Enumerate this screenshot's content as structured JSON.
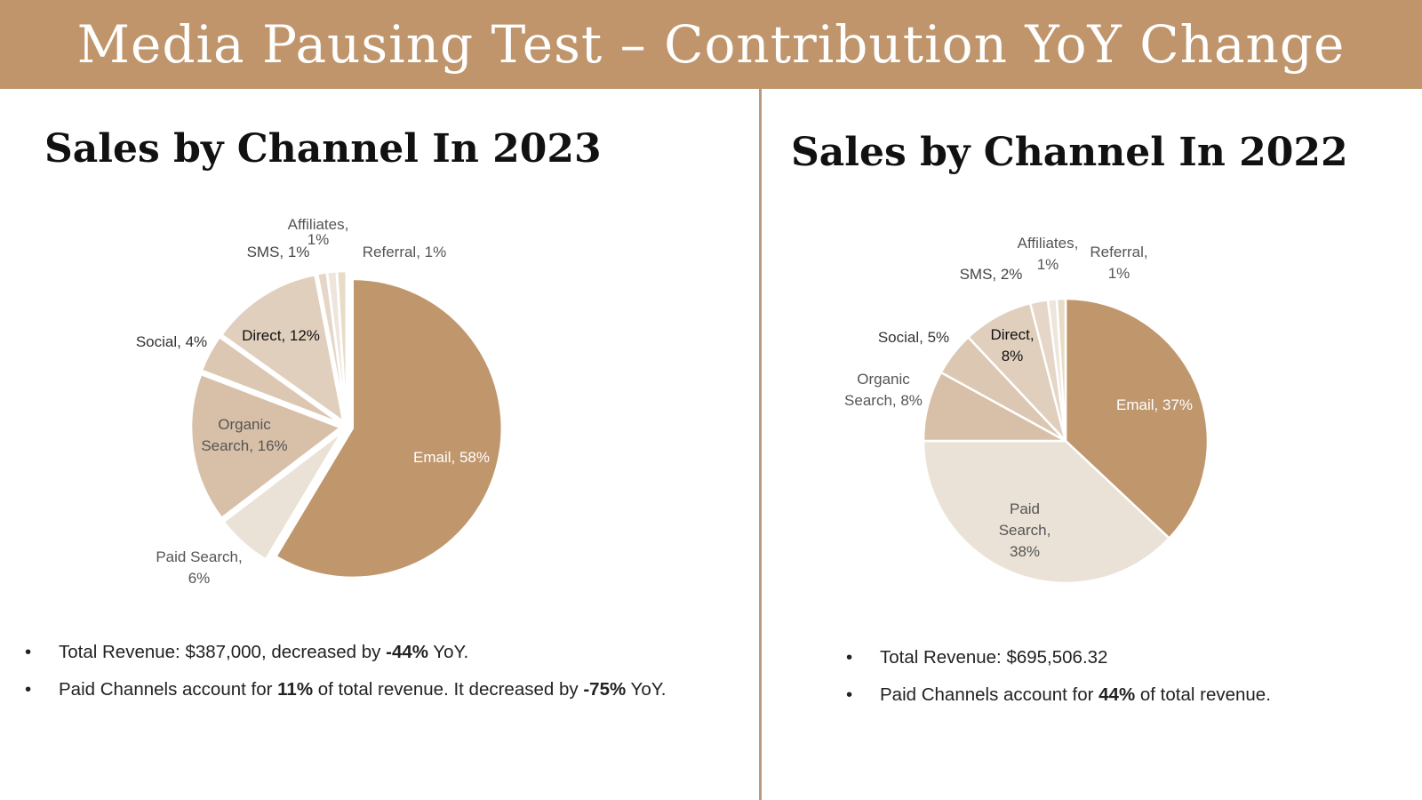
{
  "header": {
    "title": "Media Pausing Test – Contribution YoY Change"
  },
  "colors": {
    "header_bg": "#c0956b",
    "email": "#c0976d",
    "paid_search": "#ebe2d7",
    "organic_search": "#d8c0a8",
    "social": "#dcc7b2",
    "direct": "#e1cfbd",
    "sms": "#e5d6c7",
    "affiliates": "#eee5dc",
    "referral": "#e8dcc6"
  },
  "chart_data": [
    {
      "type": "pie",
      "title": "Sales by Channel In 2023",
      "slices": [
        {
          "name": "Email",
          "value": 58,
          "label": "Email, 58%",
          "color_key": "email"
        },
        {
          "name": "Paid Search",
          "value": 6,
          "label": "Paid Search, 6%",
          "color_key": "paid_search"
        },
        {
          "name": "Organic Search",
          "value": 16,
          "label": "Organic Search, 16%",
          "color_key": "organic_search"
        },
        {
          "name": "Social",
          "value": 4,
          "label": "Social, 4%",
          "color_key": "social"
        },
        {
          "name": "Direct",
          "value": 12,
          "label": "Direct, 12%",
          "color_key": "direct"
        },
        {
          "name": "SMS",
          "value": 1,
          "label": "SMS, 1%",
          "color_key": "sms"
        },
        {
          "name": "Affiliates",
          "value": 1,
          "label": "Affiliates, 1%",
          "color_key": "affiliates"
        },
        {
          "name": "Referral",
          "value": 1,
          "label": "Referral, 1%",
          "color_key": "referral"
        }
      ],
      "notes": [
        {
          "parts": [
            {
              "text": "Total Revenue: $387,000, decreased by ",
              "bold": false
            },
            {
              "text": "-44%",
              "bold": true
            },
            {
              "text": " YoY.",
              "bold": false
            }
          ]
        },
        {
          "parts": [
            {
              "text": "Paid Channels account for ",
              "bold": false
            },
            {
              "text": "11%",
              "bold": true
            },
            {
              "text": " of total revenue. It decreased by ",
              "bold": false
            },
            {
              "text": "-75%",
              "bold": true
            },
            {
              "text": " YoY.",
              "bold": false
            }
          ]
        }
      ]
    },
    {
      "type": "pie",
      "title": "Sales by Channel In 2022",
      "slices": [
        {
          "name": "Email",
          "value": 37,
          "label": "Email, 37%",
          "color_key": "email"
        },
        {
          "name": "Paid Search",
          "value": 38,
          "label": "Paid Search, 38%",
          "color_key": "paid_search"
        },
        {
          "name": "Organic Search",
          "value": 8,
          "label": "Organic Search, 8%",
          "color_key": "organic_search"
        },
        {
          "name": "Social",
          "value": 5,
          "label": "Social, 5%",
          "color_key": "social"
        },
        {
          "name": "Direct",
          "value": 8,
          "label": "Direct, 8%",
          "color_key": "direct"
        },
        {
          "name": "SMS",
          "value": 2,
          "label": "SMS, 2%",
          "color_key": "sms"
        },
        {
          "name": "Affiliates",
          "value": 1,
          "label": "Affiliates, 1%",
          "color_key": "affiliates"
        },
        {
          "name": "Referral",
          "value": 1,
          "label": "Referral, 1%",
          "color_key": "referral"
        }
      ],
      "notes": [
        {
          "parts": [
            {
              "text": "Total Revenue: $695,506.32",
              "bold": false
            }
          ]
        },
        {
          "parts": [
            {
              "text": "Paid Channels account for ",
              "bold": false
            },
            {
              "text": "44%",
              "bold": true
            },
            {
              "text": " of total revenue.",
              "bold": false
            }
          ]
        }
      ]
    }
  ]
}
